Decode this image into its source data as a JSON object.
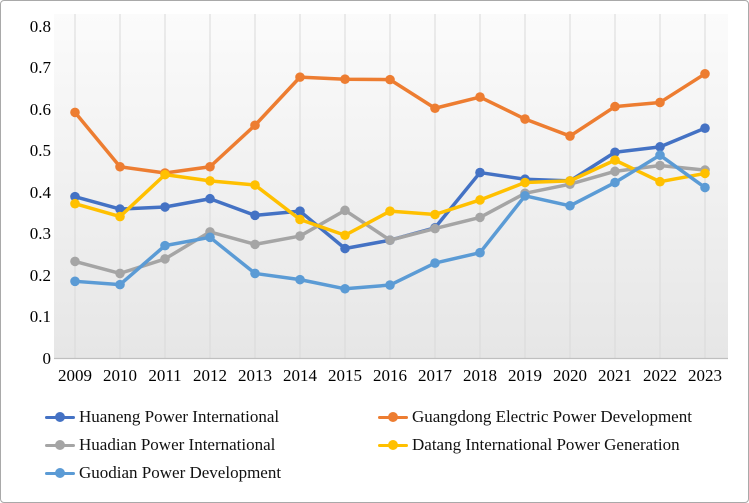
{
  "chart_data": {
    "type": "line",
    "x": [
      "2009",
      "2010",
      "2011",
      "2012",
      "2013",
      "2014",
      "2015",
      "2016",
      "2017",
      "2018",
      "2019",
      "2020",
      "2021",
      "2022",
      "2023"
    ],
    "ylim": [
      0,
      0.8
    ],
    "y_axis": {
      "ticks": [
        "0",
        "0.1",
        "0.2",
        "0.3",
        "0.4",
        "0.5",
        "0.6",
        "0.7",
        "0.8"
      ]
    },
    "grid": "vertical-only",
    "legend_position": "bottom-two-columns",
    "plot_background": {
      "top": "#fbfbfb",
      "bottom": "#e6e6e6"
    },
    "gridline_color": "#d9d9d9",
    "axis_line_color": "#bfbfbf",
    "series": [
      {
        "name": "Huaneng Power International",
        "color": "#4472C4",
        "values": [
          0.39,
          0.36,
          0.365,
          0.385,
          0.345,
          0.355,
          0.265,
          0.285,
          0.315,
          0.448,
          0.432,
          0.428,
          0.497,
          0.51,
          0.555
        ]
      },
      {
        "name": "Guangdong Electric Power Development",
        "color": "#ED7D31",
        "values": [
          0.593,
          0.462,
          0.447,
          0.462,
          0.562,
          0.678,
          0.673,
          0.672,
          0.603,
          0.63,
          0.577,
          0.536,
          0.607,
          0.617,
          0.686
        ]
      },
      {
        "name": "Huadian Power International",
        "color": "#A5A5A5",
        "values": [
          0.234,
          0.205,
          0.24,
          0.305,
          0.275,
          0.295,
          0.357,
          0.285,
          0.313,
          0.34,
          0.398,
          0.42,
          0.451,
          0.465,
          0.454
        ]
      },
      {
        "name": "Datang International Power Generation",
        "color": "#FFC000",
        "values": [
          0.373,
          0.342,
          0.443,
          0.428,
          0.418,
          0.335,
          0.297,
          0.355,
          0.347,
          0.382,
          0.424,
          0.428,
          0.478,
          0.426,
          0.446
        ]
      },
      {
        "name": "Guodian Power Development",
        "color": "#5B9BD5",
        "values": [
          0.186,
          0.178,
          0.272,
          0.292,
          0.205,
          0.19,
          0.168,
          0.177,
          0.23,
          0.255,
          0.392,
          0.368,
          0.424,
          0.49,
          0.412
        ]
      }
    ]
  }
}
